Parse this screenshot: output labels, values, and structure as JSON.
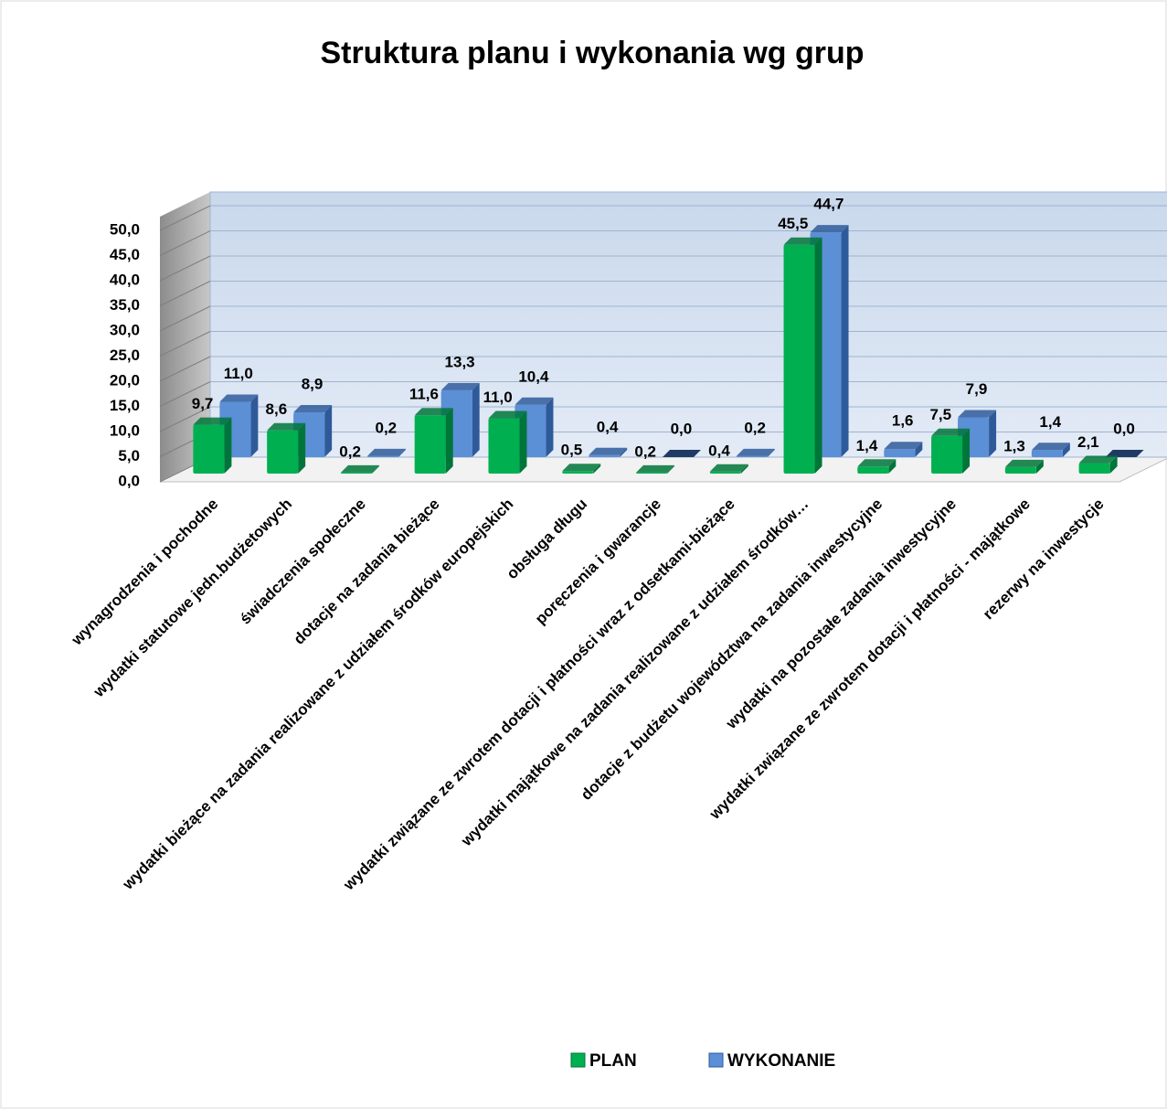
{
  "chart_data": {
    "type": "bar3d",
    "title": "Struktura planu i wykonania wg grup",
    "categories": [
      "wynagrodzenia i pochodne",
      "wydatki statutowe jedn.budżetowych",
      "świadczenia społeczne",
      "dotacje na zadania bieżące",
      "wydatki bieżące na zadania realizowane z udziałem środków europejskich",
      "obsługa długu",
      "poręczenia i gwarancje",
      "wydatki związane ze zwrotem dotacji i płatności wraz z odsetkami-bieżące",
      "wydatki majątkowe na zadania realizowane z udziałem środków…",
      "dotacje z budżetu województwa na zadania inwestycyjne",
      "wydatki na pozostałe zadania inwestycyjne",
      "wydatki związane ze zwrotem dotacji i płatności - majątkowe",
      "rezerwy na inwestycje"
    ],
    "series": [
      {
        "name": "PLAN",
        "color": "#00b050",
        "side": "#00753a",
        "values": [
          9.7,
          8.6,
          0.2,
          11.6,
          11.0,
          0.5,
          0.2,
          0.4,
          45.5,
          1.4,
          7.5,
          1.3,
          2.1
        ],
        "value_labels": [
          "9,7",
          "8,6",
          "0,2",
          "11,6",
          "11,0",
          "0,5",
          "0,2",
          "0,4",
          "45,5",
          "1,4",
          "7,5",
          "1,3",
          "2,1"
        ]
      },
      {
        "name": "WYKONANIE",
        "color": "#5b8fd6",
        "side": "#2f5a9a",
        "values": [
          11.0,
          8.9,
          0.2,
          13.3,
          10.4,
          0.4,
          0.0,
          0.2,
          44.7,
          1.6,
          7.9,
          1.4,
          0.0
        ],
        "value_labels": [
          "11,0",
          "8,9",
          "0,2",
          "13,3",
          "10,4",
          "0,4",
          "0,0",
          "0,2",
          "44,7",
          "1,6",
          "7,9",
          "1,4",
          "0,0"
        ]
      }
    ],
    "ylim": [
      0,
      50
    ],
    "yticks": [
      {
        "value": 0,
        "label": "0,0"
      },
      {
        "value": 5,
        "label": "5,0"
      },
      {
        "value": 10,
        "label": "10,0"
      },
      {
        "value": 15,
        "label": "15,0"
      },
      {
        "value": 20,
        "label": "20,0"
      },
      {
        "value": 25,
        "label": "25,0"
      },
      {
        "value": 30,
        "label": "30,0"
      },
      {
        "value": 35,
        "label": "35,0"
      },
      {
        "value": 40,
        "label": "40,0"
      },
      {
        "value": 45,
        "label": "45,0"
      },
      {
        "value": 50,
        "label": "50,0"
      }
    ],
    "grid": true,
    "legend": "bottom"
  }
}
